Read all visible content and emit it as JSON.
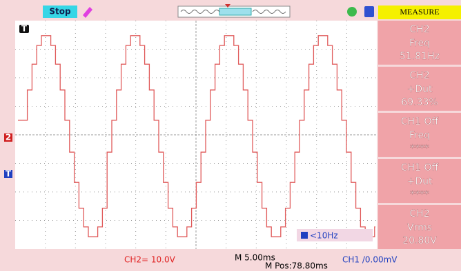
{
  "top_bar": {
    "status": "Stop",
    "menu_title": "MEASURE"
  },
  "measurements": [
    {
      "source": "CH2",
      "type": "Freq",
      "value": "51.81Hz"
    },
    {
      "source": "CH2",
      "type": "+Dut",
      "value": "69.33%"
    },
    {
      "source": "CH1 Off",
      "type": "Freq",
      "value": "****"
    },
    {
      "source": "CH1 Off",
      "type": "+Dut",
      "value": "****"
    },
    {
      "source": "CH2",
      "type": "Vrms",
      "value": "20.80V"
    }
  ],
  "markers": {
    "trigger_top": "T",
    "channel": "2",
    "trigger_level": "T"
  },
  "trigger_readout": "<10Hz",
  "status_bar": {
    "ch2_scale": "CH2= 10.0V",
    "timebase": "M 5.00ms",
    "position": "M Pos:78.80ms",
    "trigger": "CH1 /0.00mV"
  }
}
